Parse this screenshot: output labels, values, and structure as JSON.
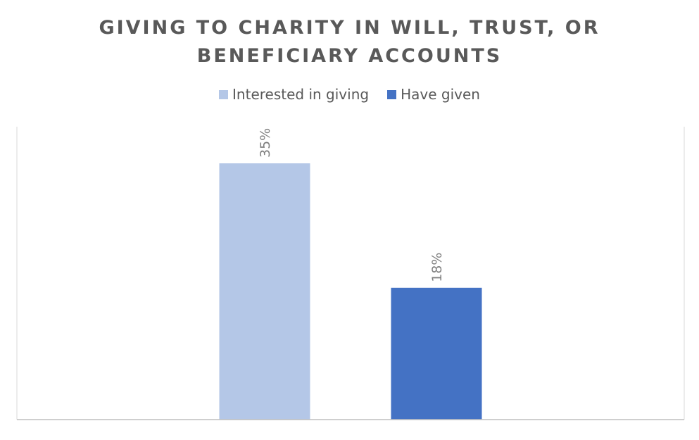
{
  "chart_data": {
    "type": "bar",
    "title_lines": [
      "GIVING TO CHARITY IN WILL, TRUST, OR",
      "BENEFICIARY ACCOUNTS"
    ],
    "xlabel": "",
    "ylabel": "",
    "series": [
      {
        "name": "Interested in giving",
        "value": 35,
        "label": "35%",
        "color": "#B4C7E7"
      },
      {
        "name": "Have given",
        "value": 18,
        "label": "18%",
        "color": "#4472C4"
      }
    ],
    "ylim": [
      0,
      40
    ],
    "grid": false,
    "legend_position": "top-center",
    "data_label_orientation": "vertical"
  }
}
